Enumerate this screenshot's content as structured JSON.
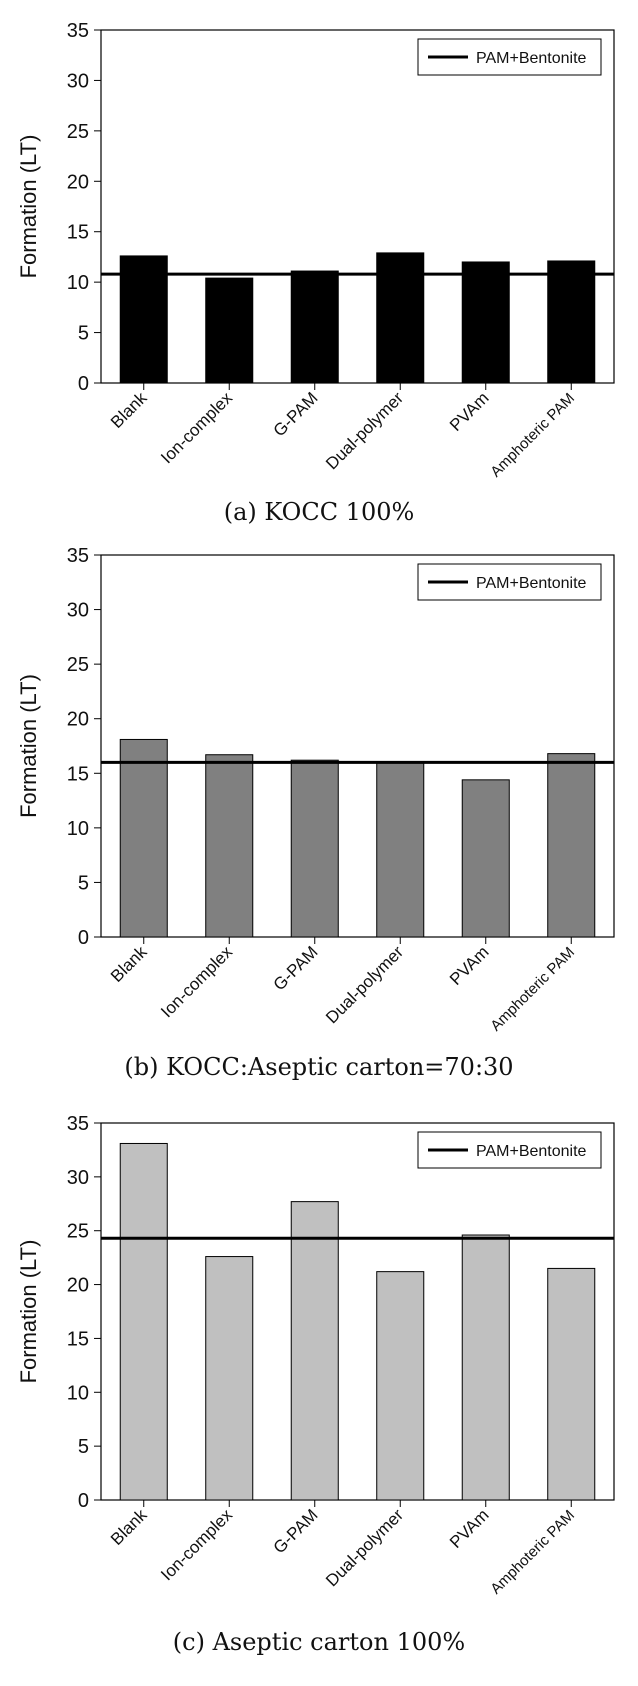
{
  "chart_data": [
    {
      "type": "bar",
      "ylabel": "Formation (LT)",
      "ylim": [
        0,
        35
      ],
      "yticks": [
        0,
        5,
        10,
        15,
        20,
        25,
        30,
        35
      ],
      "categories": [
        "Blank",
        "Ion-complex",
        "G-PAM",
        "Dual-polymer",
        "PVAm",
        "Amphoteric PAM"
      ],
      "values": [
        12.6,
        10.4,
        11.1,
        12.9,
        12.0,
        12.1
      ],
      "bar_color": "#000000",
      "reference": {
        "name": "PAM+Bentonite",
        "value": 10.8
      },
      "legend_position": "top-right",
      "caption": "(a) KOCC 100%"
    },
    {
      "type": "bar",
      "ylabel": "Formation (LT)",
      "ylim": [
        0,
        35
      ],
      "yticks": [
        0,
        5,
        10,
        15,
        20,
        25,
        30,
        35
      ],
      "categories": [
        "Blank",
        "Ion-complex",
        "G-PAM",
        "Dual-polymer",
        "PVAm",
        "Amphoteric PAM"
      ],
      "values": [
        18.1,
        16.7,
        16.2,
        16.0,
        14.4,
        16.8
      ],
      "bar_color": "#808080",
      "reference": {
        "name": "PAM+Bentonite",
        "value": 16.0
      },
      "legend_position": "top-right",
      "caption": "(b) KOCC:Aseptic carton=70:30"
    },
    {
      "type": "bar",
      "ylabel": "Formation (LT)",
      "ylim": [
        0,
        35
      ],
      "yticks": [
        0,
        5,
        10,
        15,
        20,
        25,
        30,
        35
      ],
      "categories": [
        "Blank",
        "Ion-complex",
        "G-PAM",
        "Dual-polymer",
        "PVAm",
        "Amphoteric PAM"
      ],
      "values": [
        33.1,
        22.6,
        27.7,
        21.2,
        24.6,
        21.5
      ],
      "bar_color": "#c0c0c0",
      "reference": {
        "name": "PAM+Bentonite",
        "value": 24.3
      },
      "legend_position": "top-right",
      "caption": "(c) Aseptic carton 100%"
    }
  ]
}
